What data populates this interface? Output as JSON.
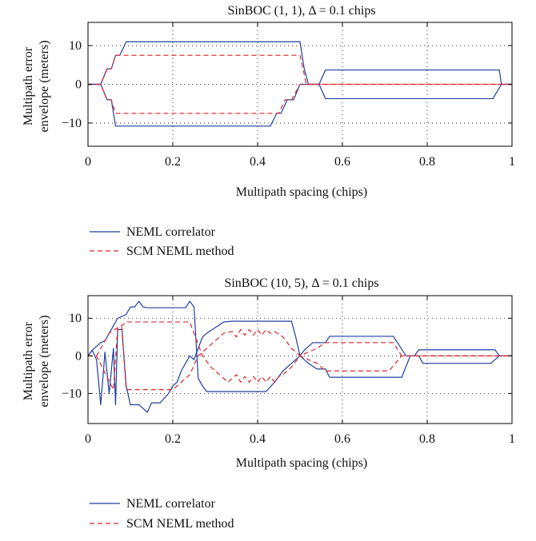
{
  "legend_common": {
    "neml": "NEML correlator",
    "scm": "SCM NEML method"
  },
  "colors": {
    "neml": "#1f3f9f",
    "scm": "#e0242a",
    "grid": "#000000",
    "axes": "#000000"
  },
  "chart_data": [
    {
      "type": "line",
      "title": "SinBOC (1, 1), Δ = 0.1 chips",
      "xlabel": "Multipath spacing (chips)",
      "ylabel": [
        "Multipath error",
        "envelope (meters)"
      ],
      "xlim": [
        0,
        1
      ],
      "ylim": [
        -16,
        16
      ],
      "xticks": [
        0,
        0.2,
        0.4,
        0.6,
        0.8,
        1
      ],
      "xtick_labels": [
        "0",
        "0.2",
        "0.4",
        "0.6",
        "0.8",
        "1"
      ],
      "yticks": [
        10,
        0,
        -10
      ],
      "ytick_labels": [
        "10",
        "0",
        "−10"
      ],
      "grid": true,
      "legend_position": "below",
      "series": [
        {
          "name": "NEML correlator",
          "style": "solid",
          "key": "neml",
          "lines": [
            [
              [
                0,
                0
              ],
              [
                0.03,
                0
              ],
              [
                0.045,
                4
              ],
              [
                0.055,
                4
              ],
              [
                0.065,
                7.5
              ],
              [
                0.075,
                7.5
              ],
              [
                0.09,
                11
              ],
              [
                0.5,
                11
              ],
              [
                0.51,
                4
              ],
              [
                0.52,
                0
              ],
              [
                0.545,
                0
              ],
              [
                0.56,
                3.7
              ],
              [
                0.97,
                3.7
              ],
              [
                0.975,
                0
              ],
              [
                1,
                0
              ]
            ],
            [
              [
                0,
                0
              ],
              [
                0.03,
                0
              ],
              [
                0.045,
                -4
              ],
              [
                0.055,
                -4
              ],
              [
                0.065,
                -10.8
              ],
              [
                0.43,
                -10.8
              ],
              [
                0.445,
                -7.5
              ],
              [
                0.455,
                -7.5
              ],
              [
                0.47,
                -4
              ],
              [
                0.485,
                -4
              ],
              [
                0.5,
                0
              ],
              [
                0.515,
                0
              ],
              [
                0.545,
                0
              ],
              [
                0.56,
                -3.7
              ],
              [
                0.955,
                -3.7
              ],
              [
                0.975,
                0
              ],
              [
                1,
                0
              ]
            ]
          ]
        },
        {
          "name": "SCM NEML method",
          "style": "dashed",
          "key": "scm",
          "lines": [
            [
              [
                0,
                0
              ],
              [
                0.03,
                0
              ],
              [
                0.045,
                4
              ],
              [
                0.055,
                4
              ],
              [
                0.065,
                7.5
              ],
              [
                0.5,
                7.5
              ],
              [
                0.515,
                0
              ],
              [
                1,
                0
              ]
            ],
            [
              [
                0,
                0
              ],
              [
                0.03,
                0
              ],
              [
                0.045,
                -4
              ],
              [
                0.055,
                -4
              ],
              [
                0.065,
                -7.5
              ],
              [
                0.45,
                -7.5
              ],
              [
                0.465,
                -4
              ],
              [
                0.48,
                -4
              ],
              [
                0.5,
                0
              ],
              [
                1,
                0
              ]
            ]
          ]
        }
      ]
    },
    {
      "type": "line",
      "title": "SinBOC (10, 5), Δ = 0.1 chips",
      "xlabel": "Multipath spacing (chips)",
      "ylabel": [
        "Multipath error",
        "envelope (meters)"
      ],
      "xlim": [
        0,
        1
      ],
      "ylim": [
        -18,
        16
      ],
      "xticks": [
        0,
        0.2,
        0.4,
        0.6,
        0.8,
        1
      ],
      "xtick_labels": [
        "0",
        "0.2",
        "0.4",
        "0.6",
        "0.8",
        "1"
      ],
      "yticks": [
        10,
        0,
        -10
      ],
      "ytick_labels": [
        "10",
        "0",
        "−10"
      ],
      "grid": true,
      "legend_position": "below",
      "series": [
        {
          "name": "NEML correlator",
          "style": "solid",
          "key": "neml",
          "lines": [
            [
              [
                0,
                0
              ],
              [
                0.01,
                1.5
              ],
              [
                0.02,
                2.5
              ],
              [
                0.03,
                3.5
              ],
              [
                0.04,
                4
              ],
              [
                0.05,
                6
              ],
              [
                0.06,
                8
              ],
              [
                0.07,
                10
              ],
              [
                0.08,
                10.5
              ],
              [
                0.09,
                11
              ],
              [
                0.1,
                13
              ],
              [
                0.11,
                13
              ],
              [
                0.12,
                14.5
              ],
              [
                0.13,
                13
              ],
              [
                0.14,
                12.8
              ],
              [
                0.15,
                12.8
              ],
              [
                0.2,
                12.8
              ],
              [
                0.23,
                12.8
              ],
              [
                0.24,
                14.5
              ],
              [
                0.25,
                13
              ],
              [
                0.26,
                -6
              ],
              [
                0.27,
                -8
              ],
              [
                0.28,
                -9.5
              ],
              [
                0.3,
                -9.5
              ],
              [
                0.42,
                -9.5
              ],
              [
                0.44,
                -7
              ],
              [
                0.46,
                -4
              ],
              [
                0.48,
                -2
              ],
              [
                0.5,
                0
              ],
              [
                0.51,
                1.5
              ],
              [
                0.53,
                3.5
              ],
              [
                0.56,
                3.5
              ],
              [
                0.57,
                5.2
              ],
              [
                0.72,
                5.2
              ],
              [
                0.75,
                0
              ],
              [
                0.77,
                0
              ],
              [
                0.78,
                1.6
              ],
              [
                0.96,
                1.6
              ],
              [
                0.97,
                0
              ],
              [
                1,
                0
              ]
            ],
            [
              [
                0,
                0
              ],
              [
                0.01,
                1.5
              ],
              [
                0.02,
                -1
              ],
              [
                0.03,
                -13
              ],
              [
                0.04,
                1
              ],
              [
                0.05,
                -10
              ],
              [
                0.06,
                2
              ],
              [
                0.065,
                -13
              ],
              [
                0.07,
                7
              ],
              [
                0.08,
                7
              ],
              [
                0.09,
                -8
              ],
              [
                0.1,
                -13
              ],
              [
                0.12,
                -13
              ],
              [
                0.13,
                -14
              ],
              [
                0.14,
                -15
              ],
              [
                0.15,
                -12.5
              ],
              [
                0.17,
                -12.5
              ],
              [
                0.19,
                -10
              ],
              [
                0.2,
                -8
              ],
              [
                0.21,
                -7
              ],
              [
                0.22,
                -4
              ],
              [
                0.23,
                -2
              ],
              [
                0.24,
                0
              ],
              [
                0.25,
                -1
              ],
              [
                0.26,
                2
              ],
              [
                0.27,
                5
              ],
              [
                0.28,
                6
              ],
              [
                0.3,
                7.5
              ],
              [
                0.32,
                9
              ],
              [
                0.34,
                9.2
              ],
              [
                0.48,
                9.2
              ],
              [
                0.49,
                5
              ],
              [
                0.5,
                0
              ],
              [
                0.52,
                -2
              ],
              [
                0.54,
                -3.5
              ],
              [
                0.56,
                -3.5
              ],
              [
                0.57,
                -5.7
              ],
              [
                0.74,
                -5.7
              ],
              [
                0.76,
                0
              ],
              [
                0.78,
                0
              ],
              [
                0.79,
                -2
              ],
              [
                0.95,
                -2
              ],
              [
                0.97,
                0
              ],
              [
                1,
                0
              ]
            ]
          ]
        },
        {
          "name": "SCM NEML method",
          "style": "dashed",
          "key": "scm",
          "lines": [
            [
              [
                0,
                0
              ],
              [
                0.02,
                0
              ],
              [
                0.03,
                2
              ],
              [
                0.05,
                6
              ],
              [
                0.07,
                7.5
              ],
              [
                0.08,
                8
              ],
              [
                0.09,
                9
              ],
              [
                0.24,
                9
              ],
              [
                0.27,
                0
              ],
              [
                0.29,
                -3
              ],
              [
                0.31,
                -5
              ],
              [
                0.33,
                -7
              ],
              [
                0.35,
                -5
              ],
              [
                0.36,
                -7
              ],
              [
                0.37,
                -5.5
              ],
              [
                0.38,
                -7
              ],
              [
                0.39,
                -5.5
              ],
              [
                0.4,
                -7
              ],
              [
                0.41,
                -5.5
              ],
              [
                0.42,
                -7
              ],
              [
                0.43,
                -5.5
              ],
              [
                0.44,
                -7
              ],
              [
                0.45,
                -5.5
              ],
              [
                0.46,
                -5
              ],
              [
                0.48,
                -3
              ],
              [
                0.5,
                0
              ],
              [
                0.52,
                -1
              ],
              [
                0.54,
                -2
              ],
              [
                0.56,
                -4
              ],
              [
                0.71,
                -4
              ],
              [
                0.74,
                0
              ],
              [
                1,
                0
              ]
            ],
            [
              [
                0,
                0
              ],
              [
                0.02,
                0
              ],
              [
                0.06,
                -9
              ],
              [
                0.07,
                7.5
              ],
              [
                0.08,
                7.5
              ],
              [
                0.09,
                -9
              ],
              [
                0.2,
                -9
              ],
              [
                0.24,
                -5
              ],
              [
                0.26,
                0
              ],
              [
                0.28,
                2
              ],
              [
                0.3,
                4
              ],
              [
                0.32,
                6
              ],
              [
                0.34,
                6.5
              ],
              [
                0.35,
                5
              ],
              [
                0.36,
                7
              ],
              [
                0.37,
                5.5
              ],
              [
                0.38,
                7
              ],
              [
                0.39,
                5.5
              ],
              [
                0.4,
                7
              ],
              [
                0.41,
                5.5
              ],
              [
                0.42,
                7
              ],
              [
                0.43,
                6
              ],
              [
                0.44,
                6.5
              ],
              [
                0.46,
                5
              ],
              [
                0.48,
                2
              ],
              [
                0.5,
                0
              ],
              [
                0.52,
                1
              ],
              [
                0.54,
                2
              ],
              [
                0.56,
                3.5
              ],
              [
                0.72,
                3.5
              ],
              [
                0.74,
                0
              ],
              [
                1,
                0
              ]
            ]
          ]
        }
      ]
    }
  ]
}
